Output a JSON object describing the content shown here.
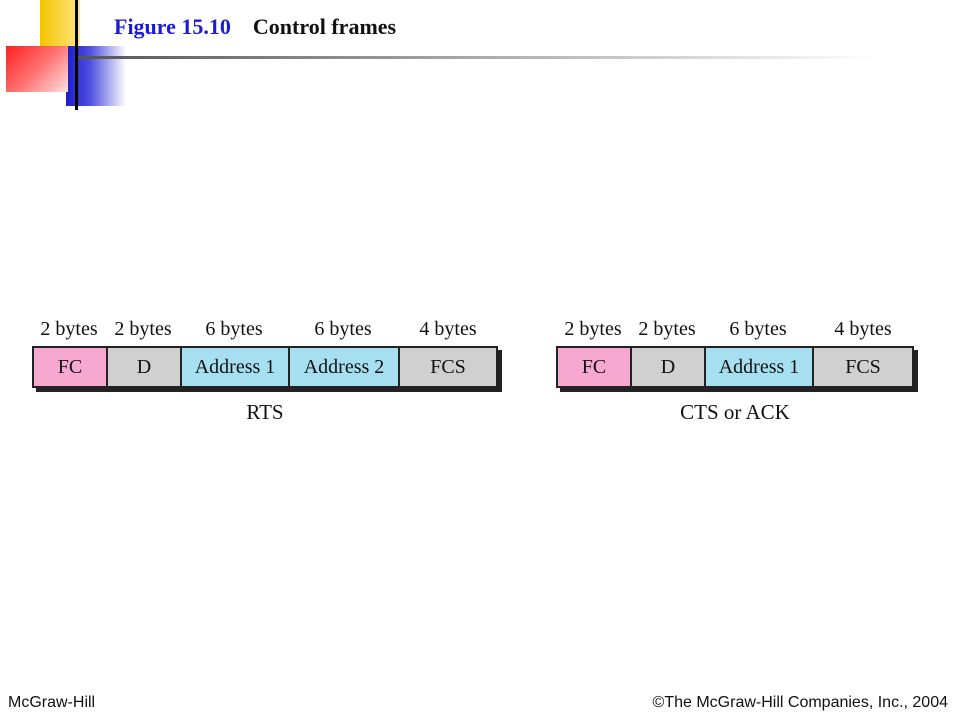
{
  "figure": {
    "number": "Figure 15.10",
    "title": "Control frames"
  },
  "frames": [
    {
      "name": "RTS",
      "fields": [
        {
          "label": "FC",
          "size": "2 bytes",
          "color": "#f7a8d0"
        },
        {
          "label": "D",
          "size": "2 bytes",
          "color": "#d0d0d0"
        },
        {
          "label": "Address 1",
          "size": "6 bytes",
          "color": "#a6e0f0"
        },
        {
          "label": "Address 2",
          "size": "6 bytes",
          "color": "#a6e0f0"
        },
        {
          "label": "FCS",
          "size": "4 bytes",
          "color": "#d0d0d0"
        }
      ]
    },
    {
      "name": "CTS or ACK",
      "fields": [
        {
          "label": "FC",
          "size": "2 bytes",
          "color": "#f7a8d0"
        },
        {
          "label": "D",
          "size": "2 bytes",
          "color": "#d0d0d0"
        },
        {
          "label": "Address 1",
          "size": "6 bytes",
          "color": "#a6e0f0"
        },
        {
          "label": "FCS",
          "size": "4 bytes",
          "color": "#d0d0d0"
        }
      ]
    }
  ],
  "footer": {
    "left": "McGraw-Hill",
    "right": "©The McGraw-Hill Companies, Inc., 2004"
  }
}
